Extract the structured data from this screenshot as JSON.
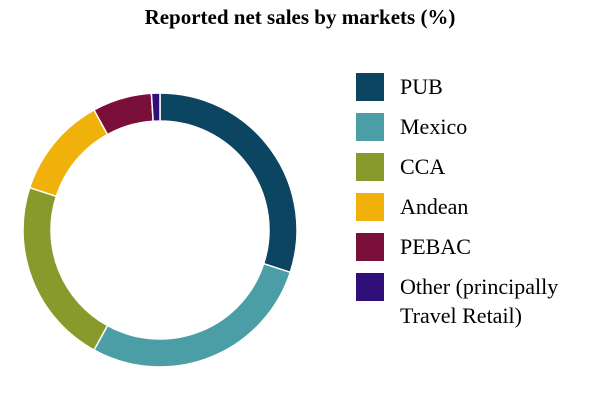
{
  "chart_data": {
    "type": "pie",
    "title": "Reported net sales by markets (%)",
    "categories": [
      "PUB",
      "Mexico",
      "CCA",
      "Andean",
      "PEBAC",
      "Other (principally Travel Retail)"
    ],
    "values": [
      30,
      28,
      22,
      12,
      7,
      1
    ],
    "colors": [
      "#0b4561",
      "#4b9ea5",
      "#879a2b",
      "#f0b10a",
      "#7a1039",
      "#2f0f78"
    ],
    "legend_position": "right",
    "donut": true
  }
}
